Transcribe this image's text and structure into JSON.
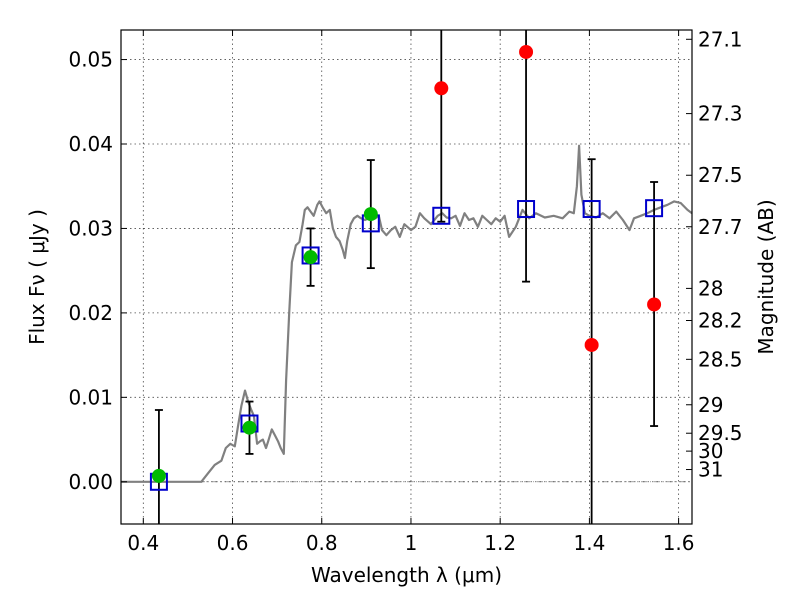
{
  "chart_data": {
    "type": "scatter",
    "xlabel": "Wavelength  λ (μm)",
    "ylabel": "Flux  Fν  ( μJy )",
    "y2label": "Magnitude (AB)",
    "xlim": [
      0.35,
      1.63
    ],
    "ylim": [
      -0.005,
      0.0535
    ],
    "grid": true,
    "x_ticks": [
      0.4,
      0.6,
      0.8,
      1.0,
      1.2,
      1.4,
      1.6
    ],
    "x_tick_labels": [
      "0.4",
      "0.6",
      "0.8",
      "1",
      "1.2",
      "1.4",
      "1.6"
    ],
    "y_ticks": [
      0.0,
      0.01,
      0.02,
      0.03,
      0.04,
      0.05
    ],
    "y_tick_labels": [
      "0.00",
      "0.01",
      "0.02",
      "0.03",
      "0.04",
      "0.05"
    ],
    "magnitude_ticks": [
      {
        "label": "27.1",
        "flux": 0.0524
      },
      {
        "label": "27.3",
        "flux": 0.0436
      },
      {
        "label": "27.5",
        "flux": 0.0363
      },
      {
        "label": "27.7",
        "flux": 0.0302
      },
      {
        "label": "28",
        "flux": 0.0229
      },
      {
        "label": "28.2",
        "flux": 0.0191
      },
      {
        "label": "28.5",
        "flux": 0.0145
      },
      {
        "label": "29",
        "flux": 0.00912
      },
      {
        "label": "29.5",
        "flux": 0.00575
      },
      {
        "label": "30",
        "flux": 0.00363
      },
      {
        "label": "31",
        "flux": 0.00145
      }
    ],
    "series": [
      {
        "kind": "line",
        "color": "#808080",
        "points": [
          [
            0.35,
            0
          ],
          [
            0.53,
            0
          ],
          [
            0.545,
            0.001
          ],
          [
            0.56,
            0.002
          ],
          [
            0.575,
            0.0025
          ],
          [
            0.585,
            0.004
          ],
          [
            0.595,
            0.0045
          ],
          [
            0.605,
            0.0042
          ],
          [
            0.612,
            0.0065
          ],
          [
            0.62,
            0.009
          ],
          [
            0.628,
            0.0108
          ],
          [
            0.635,
            0.0095
          ],
          [
            0.642,
            0.0085
          ],
          [
            0.648,
            0.0078
          ],
          [
            0.655,
            0.0045
          ],
          [
            0.662,
            0.0048
          ],
          [
            0.668,
            0.005
          ],
          [
            0.675,
            0.004
          ],
          [
            0.68,
            0.0048
          ],
          [
            0.688,
            0.0062
          ],
          [
            0.695,
            0.0055
          ],
          [
            0.702,
            0.0048
          ],
          [
            0.708,
            0.004
          ],
          [
            0.715,
            0.0033
          ],
          [
            0.72,
            0.012
          ],
          [
            0.727,
            0.02
          ],
          [
            0.733,
            0.026
          ],
          [
            0.742,
            0.028
          ],
          [
            0.75,
            0.0284
          ],
          [
            0.757,
            0.0305
          ],
          [
            0.762,
            0.0322
          ],
          [
            0.768,
            0.0325
          ],
          [
            0.775,
            0.032
          ],
          [
            0.782,
            0.0315
          ],
          [
            0.79,
            0.0328
          ],
          [
            0.795,
            0.0332
          ],
          [
            0.802,
            0.0325
          ],
          [
            0.81,
            0.0318
          ],
          [
            0.818,
            0.0322
          ],
          [
            0.825,
            0.03
          ],
          [
            0.832,
            0.029
          ],
          [
            0.84,
            0.0285
          ],
          [
            0.847,
            0.0275
          ],
          [
            0.852,
            0.0265
          ],
          [
            0.857,
            0.0285
          ],
          [
            0.865,
            0.0305
          ],
          [
            0.872,
            0.0312
          ],
          [
            0.88,
            0.0315
          ],
          [
            0.888,
            0.0312
          ],
          [
            0.897,
            0.031
          ],
          [
            0.905,
            0.0312
          ],
          [
            0.912,
            0.0318
          ],
          [
            0.92,
            0.0312
          ],
          [
            0.928,
            0.0315
          ],
          [
            0.935,
            0.0298
          ],
          [
            0.945,
            0.0292
          ],
          [
            0.955,
            0.0298
          ],
          [
            0.965,
            0.0302
          ],
          [
            0.975,
            0.029
          ],
          [
            0.985,
            0.0305
          ],
          [
            1.0,
            0.0298
          ],
          [
            1.01,
            0.0302
          ],
          [
            1.02,
            0.0318
          ],
          [
            1.03,
            0.0312
          ],
          [
            1.045,
            0.0305
          ],
          [
            1.06,
            0.0315
          ],
          [
            1.07,
            0.0318
          ],
          [
            1.08,
            0.0313
          ],
          [
            1.09,
            0.0312
          ],
          [
            1.1,
            0.0315
          ],
          [
            1.11,
            0.0303
          ],
          [
            1.12,
            0.0318
          ],
          [
            1.13,
            0.031
          ],
          [
            1.14,
            0.0312
          ],
          [
            1.15,
            0.0302
          ],
          [
            1.16,
            0.0315
          ],
          [
            1.17,
            0.031
          ],
          [
            1.18,
            0.0305
          ],
          [
            1.19,
            0.0312
          ],
          [
            1.2,
            0.0308
          ],
          [
            1.21,
            0.0315
          ],
          [
            1.22,
            0.029
          ],
          [
            1.235,
            0.0302
          ],
          [
            1.25,
            0.0322
          ],
          [
            1.265,
            0.0312
          ],
          [
            1.28,
            0.0318
          ],
          [
            1.3,
            0.0313
          ],
          [
            1.32,
            0.0315
          ],
          [
            1.34,
            0.0312
          ],
          [
            1.355,
            0.032
          ],
          [
            1.365,
            0.0318
          ],
          [
            1.372,
            0.035
          ],
          [
            1.377,
            0.0398
          ],
          [
            1.382,
            0.034
          ],
          [
            1.39,
            0.0318
          ],
          [
            1.4,
            0.0315
          ],
          [
            1.415,
            0.0313
          ],
          [
            1.43,
            0.0318
          ],
          [
            1.445,
            0.0312
          ],
          [
            1.46,
            0.032
          ],
          [
            1.475,
            0.031
          ],
          [
            1.49,
            0.0298
          ],
          [
            1.5,
            0.0312
          ],
          [
            1.515,
            0.0315
          ],
          [
            1.53,
            0.0318
          ],
          [
            1.545,
            0.0322
          ],
          [
            1.56,
            0.0325
          ],
          [
            1.575,
            0.0328
          ],
          [
            1.59,
            0.0332
          ],
          [
            1.605,
            0.033
          ],
          [
            1.62,
            0.0322
          ],
          [
            1.63,
            0.0318
          ]
        ]
      },
      {
        "kind": "error_bars",
        "color": "#000000",
        "bars": [
          {
            "x": 0.435,
            "low": -0.006,
            "high": 0.0085
          },
          {
            "x": 0.638,
            "low": 0.0033,
            "high": 0.0095
          },
          {
            "x": 0.775,
            "low": 0.0232,
            "high": 0.03
          },
          {
            "x": 0.91,
            "low": 0.0253,
            "high": 0.0381
          },
          {
            "x": 1.068,
            "low": 0.0308,
            "high": 0.0545
          },
          {
            "x": 1.258,
            "low": 0.0237,
            "high": 0.0545
          },
          {
            "x": 1.405,
            "low": -0.006,
            "high": 0.0382
          },
          {
            "x": 1.545,
            "low": 0.0066,
            "high": 0.0355
          }
        ]
      },
      {
        "kind": "hollow_squares",
        "color": "#0000cc",
        "points": [
          [
            0.435,
            0.0
          ],
          [
            0.638,
            0.0069
          ],
          [
            0.775,
            0.0268
          ],
          [
            0.91,
            0.0306
          ],
          [
            1.068,
            0.0315
          ],
          [
            1.258,
            0.0323
          ],
          [
            1.405,
            0.0323
          ],
          [
            1.545,
            0.0324
          ]
        ]
      },
      {
        "kind": "circles",
        "color": "#00bb00",
        "points": [
          [
            0.435,
            0.0007
          ],
          [
            0.638,
            0.0064
          ],
          [
            0.775,
            0.0266
          ],
          [
            0.91,
            0.0317
          ]
        ]
      },
      {
        "kind": "circles",
        "color": "#ff0000",
        "points": [
          [
            1.068,
            0.0466
          ],
          [
            1.258,
            0.0509
          ],
          [
            1.405,
            0.0162
          ],
          [
            1.545,
            0.021
          ]
        ]
      }
    ]
  }
}
